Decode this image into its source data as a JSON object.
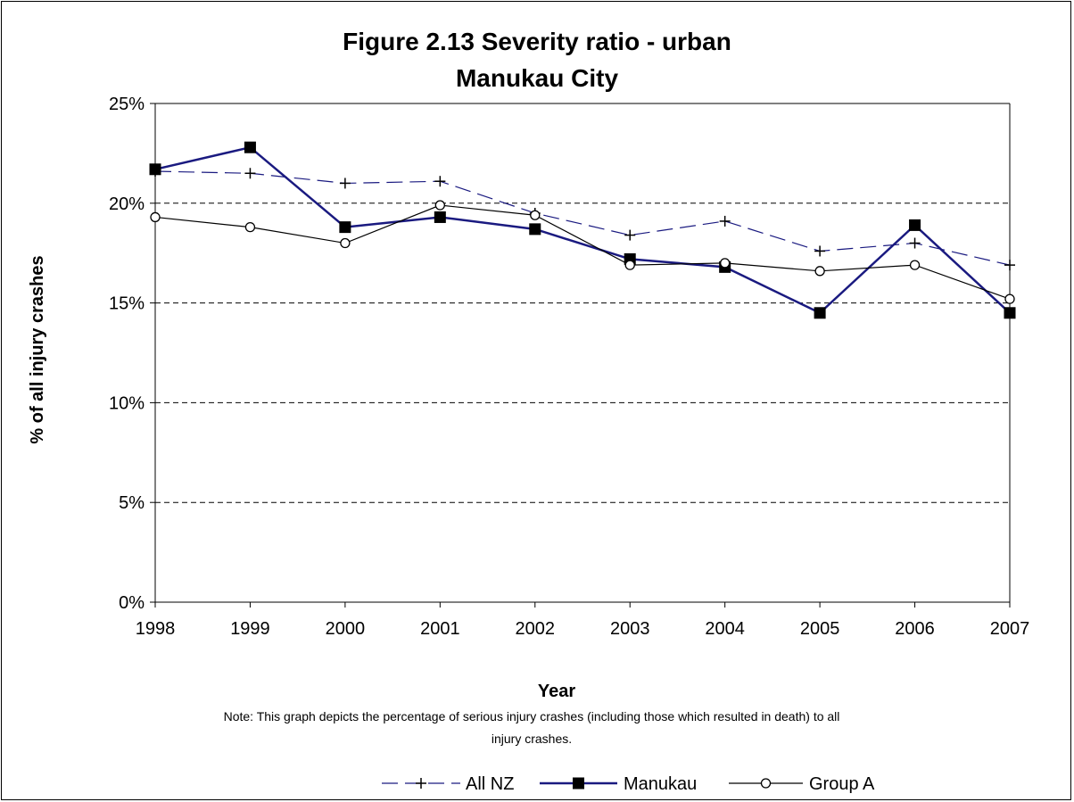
{
  "chart_data": {
    "type": "line",
    "title": "Figure 2.13 Severity ratio - urban",
    "subtitle": "Manukau City",
    "xlabel": "Year",
    "ylabel": "% of all injury crashes",
    "categories": [
      "1998",
      "1999",
      "2000",
      "2001",
      "2002",
      "2003",
      "2004",
      "2005",
      "2006",
      "2007"
    ],
    "ylim": [
      0,
      25
    ],
    "yticks": [
      "0%",
      "5%",
      "10%",
      "15%",
      "20%",
      "25%"
    ],
    "grid": "horizontal dashed",
    "legend_position": "bottom",
    "note_lines": [
      "Note: This graph depicts the percentage of serious injury crashes (including those which resulted in death) to all",
      "injury crashes."
    ],
    "series": [
      {
        "name": "All NZ",
        "values": [
          21.6,
          21.5,
          21.0,
          21.1,
          19.5,
          18.4,
          19.1,
          17.6,
          18.0,
          16.9
        ],
        "color": "#1a1a80",
        "marker": "plus",
        "dash": "dashed"
      },
      {
        "name": "Manukau",
        "values": [
          21.7,
          22.8,
          18.8,
          19.3,
          18.7,
          17.2,
          16.8,
          14.5,
          18.9,
          14.5
        ],
        "color": "#1a1a80",
        "marker": "square",
        "dash": "solid"
      },
      {
        "name": "Group A",
        "values": [
          19.3,
          18.8,
          18.0,
          19.9,
          19.4,
          16.9,
          17.0,
          16.6,
          16.9,
          15.2
        ],
        "color": "#000000",
        "marker": "circle",
        "dash": "solid"
      }
    ]
  }
}
